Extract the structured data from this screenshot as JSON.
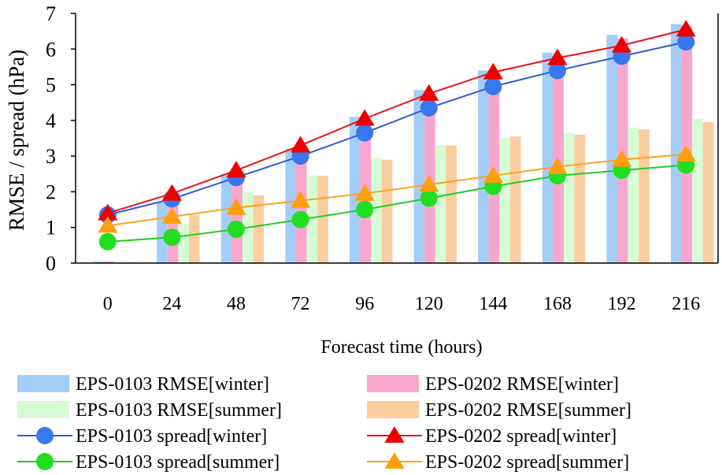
{
  "chart_data": {
    "type": "bar",
    "title": "",
    "xlabel": "Forecast time (hours)",
    "ylabel": "RMSE  /  spread (hPa)",
    "categories": [
      "0",
      "24",
      "48",
      "72",
      "96",
      "120",
      "144",
      "168",
      "192",
      "216"
    ],
    "ylim": [
      0,
      7
    ],
    "yticks": [
      0,
      1,
      2,
      3,
      4,
      5,
      6,
      7
    ],
    "grid": false,
    "legend_position": "bottom",
    "bar_series": [
      {
        "name": "EPS-0103 RMSE[winter]",
        "color": "#a3cdf7",
        "values": [
          0.05,
          1.7,
          2.5,
          3.2,
          4.1,
          4.85,
          5.4,
          5.9,
          6.4,
          6.7
        ]
      },
      {
        "name": "EPS-0202 RMSE[winter]",
        "color": "#f9a6cf",
        "values": [
          0.05,
          1.75,
          2.55,
          3.2,
          4.0,
          4.75,
          5.25,
          5.8,
          6.3,
          6.65
        ]
      },
      {
        "name": "EPS-0103 RMSE[summer]",
        "color": "#d5fcd4",
        "values": [
          0.03,
          1.1,
          2.0,
          2.45,
          2.95,
          3.3,
          3.5,
          3.65,
          3.8,
          4.05
        ]
      },
      {
        "name": "EPS-0202 RMSE[summer]",
        "color": "#fbcd9f",
        "values": [
          0.03,
          1.35,
          1.9,
          2.45,
          2.9,
          3.3,
          3.55,
          3.6,
          3.75,
          3.95
        ]
      }
    ],
    "line_series": [
      {
        "name": "EPS-0103 spread[winter]",
        "color": "#2f5bd6",
        "marker": "circle",
        "marker_color": "#3877ef",
        "values": [
          1.35,
          1.8,
          2.4,
          3.0,
          3.65,
          4.35,
          4.95,
          5.4,
          5.8,
          6.2
        ]
      },
      {
        "name": "EPS-0202 spread[winter]",
        "color": "#e8141c",
        "marker": "triangle",
        "marker_color": "#ee0000",
        "values": [
          1.4,
          1.95,
          2.6,
          3.3,
          4.05,
          4.75,
          5.35,
          5.75,
          6.1,
          6.55
        ]
      },
      {
        "name": "EPS-0103 spread[summer]",
        "color": "#22cc22",
        "marker": "circle",
        "marker_color": "#22dd22",
        "values": [
          0.6,
          0.72,
          0.95,
          1.22,
          1.5,
          1.82,
          2.15,
          2.45,
          2.6,
          2.75
        ]
      },
      {
        "name": "EPS-0202 spread[summer]",
        "color": "#ffa020",
        "marker": "triangle",
        "marker_color": "#ff9e0c",
        "values": [
          1.05,
          1.3,
          1.55,
          1.75,
          1.95,
          2.2,
          2.45,
          2.7,
          2.9,
          3.05
        ]
      }
    ],
    "legend_order": [
      "EPS-0103 RMSE[winter]",
      "EPS-0202 RMSE[winter]",
      "EPS-0103 RMSE[summer]",
      "EPS-0202 RMSE[summer]",
      "EPS-0103 spread[winter]",
      "EPS-0202 spread[winter]",
      "EPS-0103 spread[summer]",
      "EPS-0202 spread[summer]"
    ]
  }
}
